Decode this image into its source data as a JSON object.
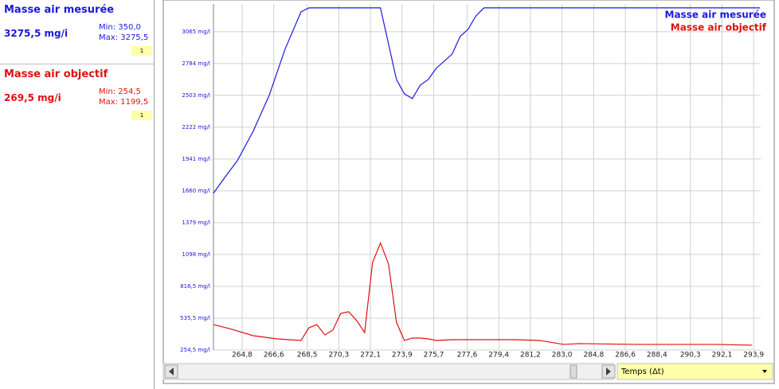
{
  "panels": [
    {
      "title": "Masse air mesurée",
      "value": "3275,5 mg/i",
      "min": "Min: 350,0",
      "max": "Max: 3275,5",
      "badge": "1",
      "color": "#1a1adb"
    },
    {
      "title": "Masse air objectif",
      "value": "269,5 mg/i",
      "min": "Min: 254,5",
      "max": "Max: 1199,5",
      "badge": "1",
      "color": "#e01010"
    }
  ],
  "x_axis_selector": "Temps (Δt)",
  "chart_data": {
    "type": "line",
    "xlim": [
      263.17,
      294.3
    ],
    "ylim": [
      254.5,
      3310
    ],
    "xticks": [
      {
        "value": 264.8,
        "label": "264,8"
      },
      {
        "value": 266.6,
        "label": "266,6"
      },
      {
        "value": 268.5,
        "label": "268,5"
      },
      {
        "value": 270.3,
        "label": "270,3"
      },
      {
        "value": 272.1,
        "label": "272,1"
      },
      {
        "value": 273.9,
        "label": "273,9"
      },
      {
        "value": 275.7,
        "label": "275,7"
      },
      {
        "value": 277.6,
        "label": "277,6"
      },
      {
        "value": 279.4,
        "label": "279,4"
      },
      {
        "value": 281.2,
        "label": "281,2"
      },
      {
        "value": 283.0,
        "label": "283,0"
      },
      {
        "value": 284.8,
        "label": "284,8"
      },
      {
        "value": 286.6,
        "label": "286,6"
      },
      {
        "value": 288.4,
        "label": "288,4"
      },
      {
        "value": 290.3,
        "label": "290,3"
      },
      {
        "value": 292.1,
        "label": "292,1"
      },
      {
        "value": 293.9,
        "label": "293,9"
      }
    ],
    "yticks": [
      {
        "value": 254.5,
        "label": "254,5 mg/l"
      },
      {
        "value": 535.5,
        "label": "535,5 mg/l"
      },
      {
        "value": 816.5,
        "label": "816,5 mg/l"
      },
      {
        "value": 1098,
        "label": "1098 mg/l"
      },
      {
        "value": 1379,
        "label": "1379 mg/l"
      },
      {
        "value": 1660,
        "label": "1660 mg/l"
      },
      {
        "value": 1941,
        "label": "1941 mg/l"
      },
      {
        "value": 2222,
        "label": "2222 mg/l"
      },
      {
        "value": 2503,
        "label": "2503 mg/l"
      },
      {
        "value": 2784,
        "label": "2784 mg/l"
      },
      {
        "value": 3065,
        "label": "3065 mg/l"
      }
    ],
    "grid": true,
    "legend": "top-right",
    "series": [
      {
        "name": "Masse air mesurée",
        "color": "#1a1adb",
        "x": [
          263.17,
          263.85,
          264.53,
          265.43,
          266.34,
          267.24,
          268.15,
          268.6,
          272.67,
          273.58,
          274.03,
          274.48,
          274.94,
          275.39,
          275.84,
          276.75,
          277.2,
          277.65,
          278.1,
          278.56,
          294.26
        ],
        "values": [
          1639,
          1786,
          1927,
          2187,
          2503,
          2910,
          3240,
          3275.5,
          3275.5,
          2643,
          2517,
          2475,
          2594,
          2643,
          2742,
          2868,
          3023,
          3086,
          3205,
          3275.5,
          3275.5
        ]
      },
      {
        "name": "Masse air objectif",
        "color": "#e01010",
        "x": [
          263.17,
          264.08,
          265.43,
          266.79,
          268.15,
          268.6,
          269.05,
          269.51,
          269.96,
          270.41,
          270.86,
          271.32,
          271.77,
          272.22,
          272.67,
          273.13,
          273.58,
          274.03,
          274.48,
          274.94,
          275.39,
          275.84,
          276.75,
          278.1,
          280.37,
          281.72,
          283.08,
          283.99,
          287.24,
          291.77,
          293.81
        ],
        "values": [
          479,
          444,
          381,
          353,
          339,
          451,
          479,
          388,
          430,
          578,
          592,
          514,
          409,
          1027,
          1199.5,
          1013,
          500,
          339,
          360,
          360,
          353,
          339,
          346,
          346,
          346,
          339,
          304,
          311,
          304,
          304,
          297
        ]
      }
    ]
  }
}
